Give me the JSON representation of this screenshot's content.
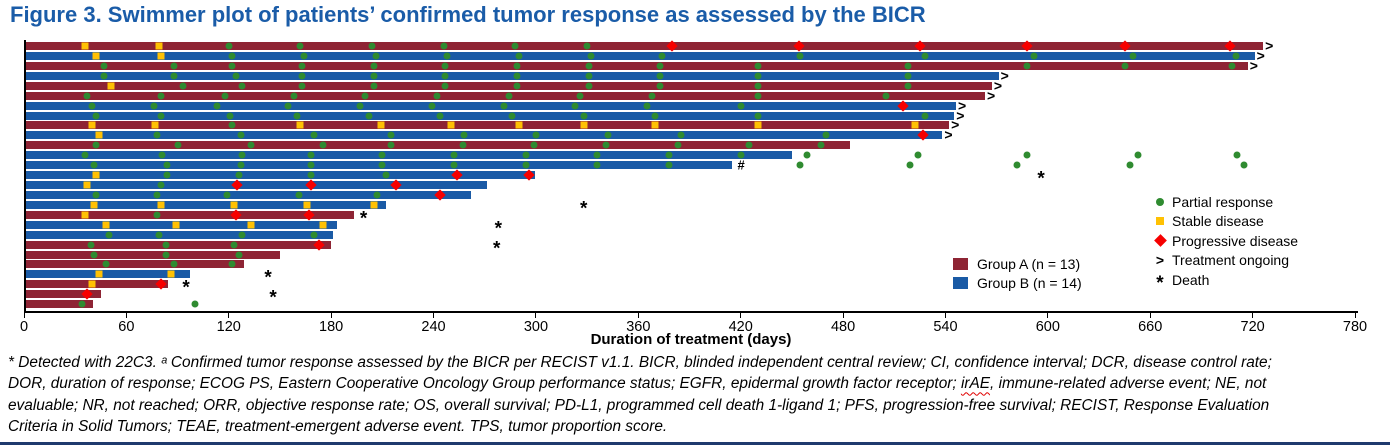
{
  "title": "Figure 3. Swimmer plot of patients’ confirmed tumor response as assessed by the BICR",
  "colors": {
    "title": "#1A5CA8",
    "group_a": "#8E2434",
    "group_b": "#1A5AA5",
    "partial_response": "#2F8B30",
    "stable_disease": "#FFC103",
    "progressive_disease": "#F60000",
    "bottom_rule": "#1F3A6E"
  },
  "legend_markers": [
    {
      "type": "pr",
      "label": "Partial response"
    },
    {
      "type": "sd",
      "label": "Stable disease"
    },
    {
      "type": "pd",
      "label": "Progressive disease"
    },
    {
      "type": "gt",
      "glyph": ">",
      "label": "Treatment ongoing"
    },
    {
      "type": "death",
      "glyph": "*",
      "label": "Death"
    }
  ],
  "legend_groups": [
    {
      "group": "A",
      "label": "Group A (n = 13)"
    },
    {
      "group": "B",
      "label": "Group B (n = 14)"
    }
  ],
  "footnote_lines": [
    "* Detected with 22C3. ᵃ Confirmed tumor response assessed by the BICR per RECIST v1.1. BICR, blinded independent central review; CI, confidence interval; DCR, disease control rate;",
    "DOR, duration of response; ECOG PS, Eastern Cooperative Oncology Group performance status; EGFR, epidermal growth factor receptor; irAE, immune-related adverse event; NE, not",
    "evaluable; NR, not reached; ORR, objective response rate; OS, overall survival; PD-L1, programmed cell death 1-ligand 1; PFS, progression-free survival; RECIST, Response Evaluation",
    "Criteria in Solid Tumors; TEAE, treatment-emergent adverse event. TPS, tumor proportion score."
  ],
  "chart_data": {
    "type": "bar",
    "variant": "swimmer",
    "orientation": "horizontal",
    "title": "Figure 3. Swimmer plot of patients’ confirmed tumor response as assessed by the BICR",
    "xlabel": "Duration of treatment (days)",
    "xlim": [
      0,
      780
    ],
    "xticks": [
      0,
      60,
      120,
      180,
      240,
      300,
      360,
      420,
      480,
      540,
      600,
      660,
      720,
      780
    ],
    "grid": false,
    "legend_position": "right",
    "marker_types": {
      "pr": "Partial response",
      "sd": "Stable disease",
      "pd": "Progressive disease"
    },
    "patients": [
      {
        "group": "A",
        "end": 725,
        "ongoing": true,
        "death": null,
        "hash": false,
        "post": [],
        "markers": [
          [
            36,
            "sd"
          ],
          [
            79,
            "sd"
          ],
          [
            120,
            "pr"
          ],
          [
            162,
            "pr"
          ],
          [
            204,
            "pr"
          ],
          [
            246,
            "pr"
          ],
          [
            288,
            "pr"
          ],
          [
            330,
            "pr"
          ],
          [
            380,
            "pd"
          ],
          [
            454,
            "pd"
          ],
          [
            525,
            "pd"
          ],
          [
            588,
            "pd"
          ],
          [
            645,
            "pd"
          ],
          [
            707,
            "pd"
          ]
        ]
      },
      {
        "group": "B",
        "end": 720,
        "ongoing": true,
        "death": null,
        "hash": false,
        "post": [],
        "markers": [
          [
            42,
            "sd"
          ],
          [
            80,
            "sd"
          ],
          [
            122,
            "pr"
          ],
          [
            164,
            "pr"
          ],
          [
            206,
            "pr"
          ],
          [
            248,
            "pr"
          ],
          [
            290,
            "pr"
          ],
          [
            332,
            "pr"
          ],
          [
            374,
            "pr"
          ],
          [
            455,
            "pr"
          ],
          [
            528,
            "pr"
          ],
          [
            592,
            "pr"
          ],
          [
            650,
            "pr"
          ],
          [
            710,
            "pr"
          ]
        ]
      },
      {
        "group": "A",
        "end": 716,
        "ongoing": true,
        "death": null,
        "hash": false,
        "post": [],
        "markers": [
          [
            47,
            "pr"
          ],
          [
            88,
            "pr"
          ],
          [
            122,
            "pr"
          ],
          [
            163,
            "pr"
          ],
          [
            205,
            "pr"
          ],
          [
            247,
            "pr"
          ],
          [
            289,
            "pr"
          ],
          [
            331,
            "pr"
          ],
          [
            373,
            "pr"
          ],
          [
            430,
            "pr"
          ],
          [
            518,
            "pr"
          ],
          [
            588,
            "pr"
          ],
          [
            645,
            "pr"
          ],
          [
            708,
            "pr"
          ]
        ]
      },
      {
        "group": "B",
        "end": 570,
        "ongoing": true,
        "death": null,
        "hash": false,
        "post": [],
        "markers": [
          [
            47,
            "pr"
          ],
          [
            88,
            "pr"
          ],
          [
            124,
            "pr"
          ],
          [
            163,
            "pr"
          ],
          [
            205,
            "pr"
          ],
          [
            247,
            "pr"
          ],
          [
            289,
            "pr"
          ],
          [
            331,
            "pr"
          ],
          [
            373,
            "pr"
          ],
          [
            430,
            "pr"
          ],
          [
            518,
            "pr"
          ]
        ]
      },
      {
        "group": "A",
        "end": 566,
        "ongoing": true,
        "death": null,
        "hash": false,
        "post": [],
        "markers": [
          [
            51,
            "sd"
          ],
          [
            93,
            "pr"
          ],
          [
            128,
            "pr"
          ],
          [
            163,
            "pr"
          ],
          [
            205,
            "pr"
          ],
          [
            247,
            "pr"
          ],
          [
            289,
            "pr"
          ],
          [
            331,
            "pr"
          ],
          [
            373,
            "pr"
          ],
          [
            430,
            "pr"
          ],
          [
            518,
            "pr"
          ]
        ]
      },
      {
        "group": "A",
        "end": 562,
        "ongoing": true,
        "death": null,
        "hash": false,
        "post": [],
        "markers": [
          [
            37,
            "pr"
          ],
          [
            80,
            "pr"
          ],
          [
            118,
            "pr"
          ],
          [
            158,
            "pr"
          ],
          [
            200,
            "pr"
          ],
          [
            242,
            "pr"
          ],
          [
            284,
            "pr"
          ],
          [
            326,
            "pr"
          ],
          [
            368,
            "pr"
          ],
          [
            430,
            "pr"
          ],
          [
            505,
            "pr"
          ]
        ]
      },
      {
        "group": "B",
        "end": 545,
        "ongoing": true,
        "death": null,
        "hash": false,
        "post": [],
        "markers": [
          [
            40,
            "pr"
          ],
          [
            76,
            "pr"
          ],
          [
            113,
            "pr"
          ],
          [
            155,
            "pr"
          ],
          [
            197,
            "pr"
          ],
          [
            239,
            "pr"
          ],
          [
            281,
            "pr"
          ],
          [
            323,
            "pr"
          ],
          [
            365,
            "pr"
          ],
          [
            420,
            "pr"
          ],
          [
            515,
            "pd"
          ]
        ]
      },
      {
        "group": "B",
        "end": 544,
        "ongoing": true,
        "death": null,
        "hash": false,
        "post": [],
        "markers": [
          [
            42,
            "pr"
          ],
          [
            80,
            "pr"
          ],
          [
            121,
            "pr"
          ],
          [
            160,
            "pr"
          ],
          [
            202,
            "pr"
          ],
          [
            244,
            "pr"
          ],
          [
            286,
            "pr"
          ],
          [
            328,
            "pr"
          ],
          [
            370,
            "pr"
          ],
          [
            430,
            "pr"
          ],
          [
            528,
            "pr"
          ]
        ]
      },
      {
        "group": "A",
        "end": 541,
        "ongoing": true,
        "death": null,
        "hash": false,
        "post": [],
        "markers": [
          [
            40,
            "sd"
          ],
          [
            77,
            "sd"
          ],
          [
            122,
            "pr"
          ],
          [
            162,
            "sd"
          ],
          [
            209,
            "sd"
          ],
          [
            250,
            "sd"
          ],
          [
            290,
            "sd"
          ],
          [
            328,
            "sd"
          ],
          [
            370,
            "sd"
          ],
          [
            430,
            "sd"
          ],
          [
            522,
            "sd"
          ]
        ]
      },
      {
        "group": "B",
        "end": 537,
        "ongoing": true,
        "death": null,
        "hash": false,
        "post": [],
        "markers": [
          [
            44,
            "sd"
          ],
          [
            78,
            "pr"
          ],
          [
            127,
            "pr"
          ],
          [
            170,
            "pr"
          ],
          [
            215,
            "pr"
          ],
          [
            258,
            "pr"
          ],
          [
            300,
            "pr"
          ],
          [
            342,
            "pr"
          ],
          [
            385,
            "pr"
          ],
          [
            470,
            "pr"
          ],
          [
            527,
            "pd"
          ]
        ]
      },
      {
        "group": "A",
        "end": 483,
        "ongoing": false,
        "death": null,
        "hash": false,
        "post": [],
        "markers": [
          [
            42,
            "pr"
          ],
          [
            90,
            "pr"
          ],
          [
            133,
            "pr"
          ],
          [
            175,
            "pr"
          ],
          [
            215,
            "pr"
          ],
          [
            257,
            "pr"
          ],
          [
            299,
            "pr"
          ],
          [
            341,
            "pr"
          ],
          [
            383,
            "pr"
          ],
          [
            425,
            "pr"
          ],
          [
            467,
            "pr"
          ]
        ]
      },
      {
        "group": "B",
        "end": 449,
        "ongoing": false,
        "death": null,
        "hash": false,
        "post": [
          459,
          524,
          588,
          653,
          711
        ],
        "markers": [
          [
            36,
            "pr"
          ],
          [
            81,
            "pr"
          ],
          [
            128,
            "pr"
          ],
          [
            168,
            "pr"
          ],
          [
            210,
            "pr"
          ],
          [
            252,
            "pr"
          ],
          [
            294,
            "pr"
          ],
          [
            336,
            "pr"
          ],
          [
            378,
            "pr"
          ],
          [
            420,
            "pr"
          ]
        ]
      },
      {
        "group": "B",
        "end": 414,
        "ongoing": false,
        "death": null,
        "hash": true,
        "post": [
          455,
          519,
          582,
          648,
          715
        ],
        "markers": [
          [
            41,
            "pr"
          ],
          [
            84,
            "pr"
          ],
          [
            127,
            "pr"
          ],
          [
            168,
            "pr"
          ],
          [
            210,
            "pr"
          ],
          [
            252,
            "pr"
          ],
          [
            294,
            "pr"
          ],
          [
            336,
            "pr"
          ],
          [
            378,
            "pr"
          ]
        ]
      },
      {
        "group": "B",
        "end": 298,
        "ongoing": false,
        "death": 596,
        "hash": false,
        "post": [],
        "markers": [
          [
            42,
            "sd"
          ],
          [
            84,
            "pr"
          ],
          [
            126,
            "pr"
          ],
          [
            168,
            "pr"
          ],
          [
            212,
            "pr"
          ],
          [
            254,
            "pd"
          ],
          [
            296,
            "pd"
          ]
        ]
      },
      {
        "group": "B",
        "end": 270,
        "ongoing": false,
        "death": null,
        "hash": false,
        "post": [],
        "markers": [
          [
            37,
            "sd"
          ],
          [
            80,
            "pr"
          ],
          [
            125,
            "pd"
          ],
          [
            168,
            "pd"
          ],
          [
            218,
            "pd"
          ]
        ]
      },
      {
        "group": "B",
        "end": 261,
        "ongoing": false,
        "death": null,
        "hash": false,
        "post": [],
        "markers": [
          [
            42,
            "pr"
          ],
          [
            78,
            "pr"
          ],
          [
            119,
            "pr"
          ],
          [
            161,
            "pr"
          ],
          [
            207,
            "pr"
          ],
          [
            244,
            "pd"
          ]
        ]
      },
      {
        "group": "B",
        "end": 211,
        "ongoing": false,
        "death": 328,
        "hash": false,
        "post": [],
        "markers": [
          [
            41,
            "sd"
          ],
          [
            80,
            "sd"
          ],
          [
            123,
            "sd"
          ],
          [
            166,
            "sd"
          ],
          [
            205,
            "sd"
          ]
        ]
      },
      {
        "group": "A",
        "end": 192,
        "ongoing": false,
        "death": 199,
        "hash": false,
        "post": [],
        "markers": [
          [
            36,
            "sd"
          ],
          [
            78,
            "pr"
          ],
          [
            124,
            "pd"
          ],
          [
            167,
            "pd"
          ]
        ]
      },
      {
        "group": "B",
        "end": 182,
        "ongoing": false,
        "death": 278,
        "hash": false,
        "post": [],
        "markers": [
          [
            48,
            "sd"
          ],
          [
            89,
            "sd"
          ],
          [
            133,
            "sd"
          ],
          [
            175,
            "sd"
          ]
        ]
      },
      {
        "group": "B",
        "end": 180,
        "ongoing": false,
        "death": null,
        "hash": false,
        "post": [],
        "markers": [
          [
            50,
            "pr"
          ],
          [
            79,
            "pr"
          ],
          [
            128,
            "pr"
          ],
          [
            170,
            "pr"
          ]
        ]
      },
      {
        "group": "A",
        "end": 179,
        "ongoing": false,
        "death": 277,
        "hash": false,
        "post": [],
        "markers": [
          [
            39,
            "pr"
          ],
          [
            83,
            "pr"
          ],
          [
            123,
            "pr"
          ],
          [
            173,
            "pd"
          ]
        ]
      },
      {
        "group": "A",
        "end": 149,
        "ongoing": false,
        "death": null,
        "hash": false,
        "post": [],
        "markers": [
          [
            41,
            "pr"
          ],
          [
            83,
            "pr"
          ],
          [
            126,
            "pr"
          ]
        ]
      },
      {
        "group": "A",
        "end": 128,
        "ongoing": false,
        "death": null,
        "hash": false,
        "post": [],
        "markers": [
          [
            48,
            "pr"
          ],
          [
            88,
            "pr"
          ],
          [
            122,
            "pr"
          ]
        ]
      },
      {
        "group": "B",
        "end": 96,
        "ongoing": false,
        "death": 143,
        "hash": false,
        "post": [],
        "markers": [
          [
            44,
            "sd"
          ],
          [
            86,
            "sd"
          ]
        ]
      },
      {
        "group": "A",
        "end": 83,
        "ongoing": false,
        "death": 95,
        "hash": false,
        "post": [],
        "markers": [
          [
            40,
            "sd"
          ],
          [
            80,
            "pd"
          ]
        ]
      },
      {
        "group": "A",
        "end": 44,
        "ongoing": false,
        "death": 146,
        "hash": false,
        "post": [],
        "markers": [
          [
            37,
            "pd"
          ]
        ]
      },
      {
        "group": "A",
        "end": 39,
        "ongoing": false,
        "death": null,
        "hash": false,
        "post": [
          100
        ],
        "markers": [
          [
            34,
            "pr"
          ]
        ]
      }
    ],
    "xaxis_title": "Duration of treatment (days)"
  },
  "axis": {
    "label": "Duration of treatment (days)"
  }
}
